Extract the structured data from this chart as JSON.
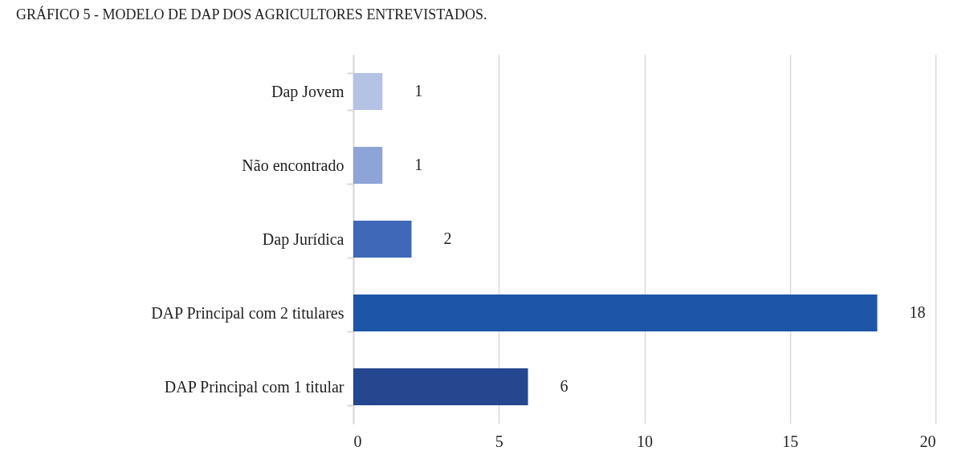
{
  "chart_data": {
    "type": "bar",
    "orientation": "horizontal",
    "title": "GRÁFICO 5 - MODELO DE DAP DOS AGRICULTORES ENTREVISTADOS.",
    "categories": [
      "Dap Jovem",
      "Não encontrado",
      "Dap Jurídica",
      "DAP Principal com 2 titulares",
      "DAP Principal com 1 titular"
    ],
    "values": [
      1,
      1,
      2,
      18,
      6
    ],
    "colors": [
      "#b4c2e3",
      "#8ea3d6",
      "#3f69b8",
      "#1d56a8",
      "#24478f"
    ],
    "xlim": [
      0,
      20
    ],
    "xticks": [
      0,
      5,
      10,
      15,
      20
    ],
    "grid": "x",
    "data_labels": true,
    "legend": false
  }
}
